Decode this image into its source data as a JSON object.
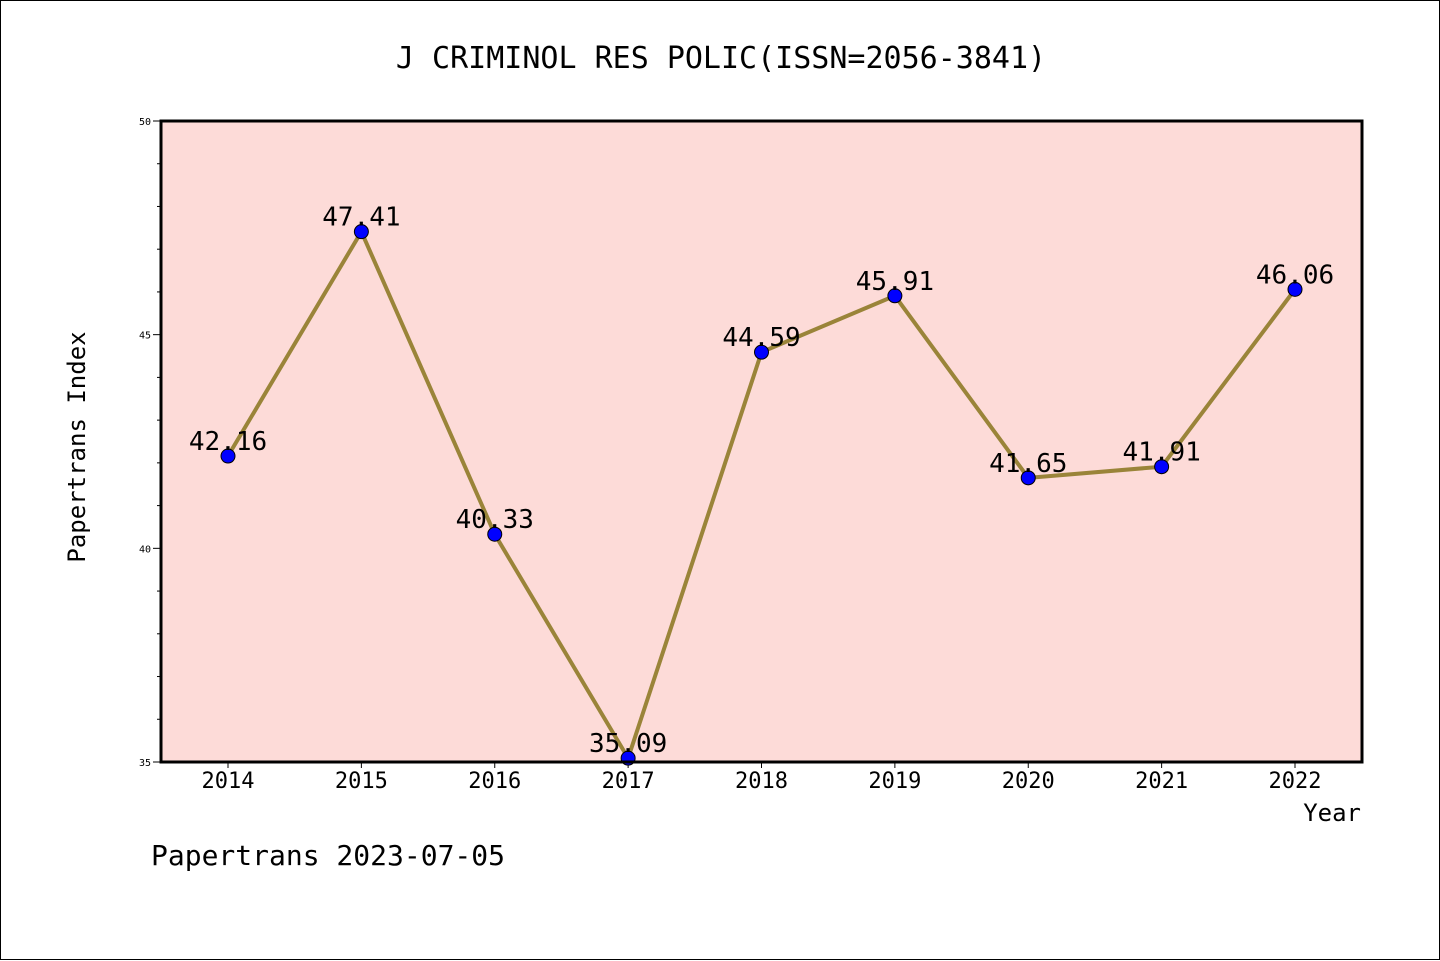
{
  "chart_data": {
    "type": "line",
    "title": "J CRIMINOL RES POLIC(ISSN=2056-3841)",
    "xlabel": "Year",
    "ylabel": "Papertrans Index",
    "categories": [
      "2014",
      "2015",
      "2016",
      "2017",
      "2018",
      "2019",
      "2020",
      "2021",
      "2022"
    ],
    "series": [
      {
        "values": [
          42.16,
          47.41,
          40.33,
          35.09,
          44.59,
          45.91,
          41.65,
          41.91,
          46.06
        ],
        "labels": [
          "42.16",
          "47.41",
          "40.33",
          "35.09",
          "44.59",
          "45.91",
          "41.65",
          "41.91",
          "46.06"
        ]
      }
    ],
    "ylim": [
      35,
      50
    ],
    "y_major_ticks": [
      35,
      40,
      45,
      50
    ],
    "y_minor_step": 1,
    "grid": false,
    "colors": {
      "plot_background": "#fddbd8",
      "line": "#9a8439",
      "marker": "#0000ff",
      "axes": "#000000"
    }
  },
  "footer": {
    "text": "Papertrans 2023-07-05"
  }
}
